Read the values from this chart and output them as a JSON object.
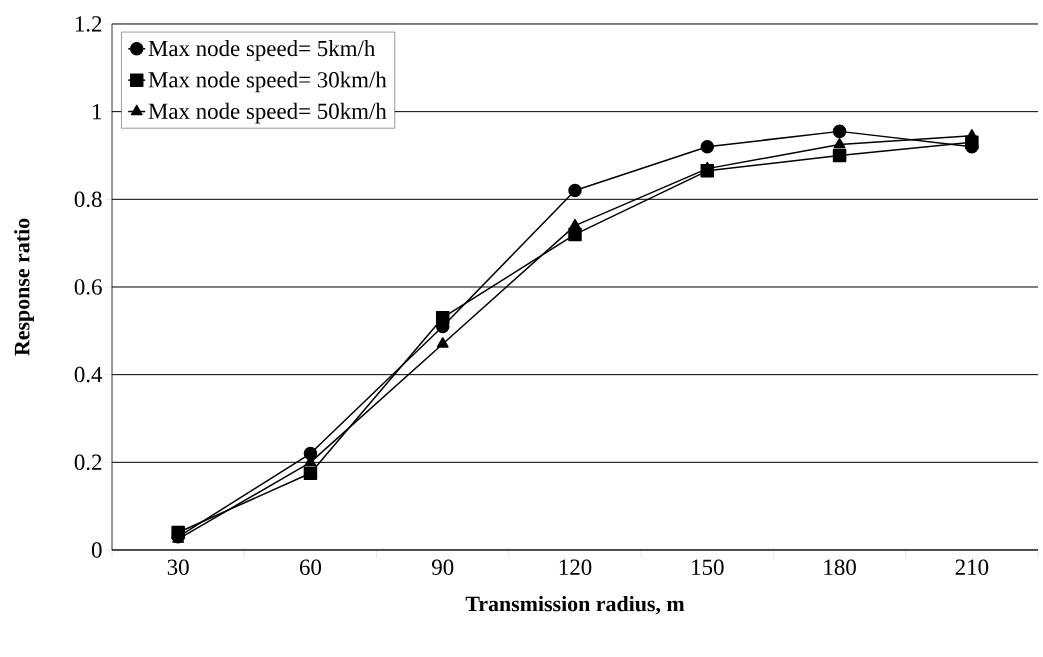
{
  "chart_data": {
    "type": "line",
    "xlabel": "Transmission radius, m",
    "ylabel": "Response ratio",
    "categories": [
      "30",
      "60",
      "90",
      "120",
      "150",
      "180",
      "210"
    ],
    "series": [
      {
        "name": "Max node speed= 5km/h",
        "color": "#000000",
        "marker": "circle",
        "values": [
          0.03,
          0.22,
          0.51,
          0.82,
          0.92,
          0.955,
          0.92
        ]
      },
      {
        "name": "Max node speed= 30km/h",
        "color": "#000000",
        "marker": "square",
        "values": [
          0.04,
          0.175,
          0.53,
          0.72,
          0.865,
          0.9,
          0.93
        ]
      },
      {
        "name": "Max node speed= 50km/h",
        "color": "#000000",
        "marker": "triangle",
        "values": [
          0.025,
          0.2,
          0.47,
          0.74,
          0.87,
          0.925,
          0.945
        ]
      }
    ],
    "ylim": [
      0,
      1.2
    ],
    "yticks": [
      0,
      0.2,
      0.4,
      0.6,
      0.8,
      1,
      1.2
    ],
    "grid": "y",
    "legend": "top left",
    "line_style": "solid"
  }
}
